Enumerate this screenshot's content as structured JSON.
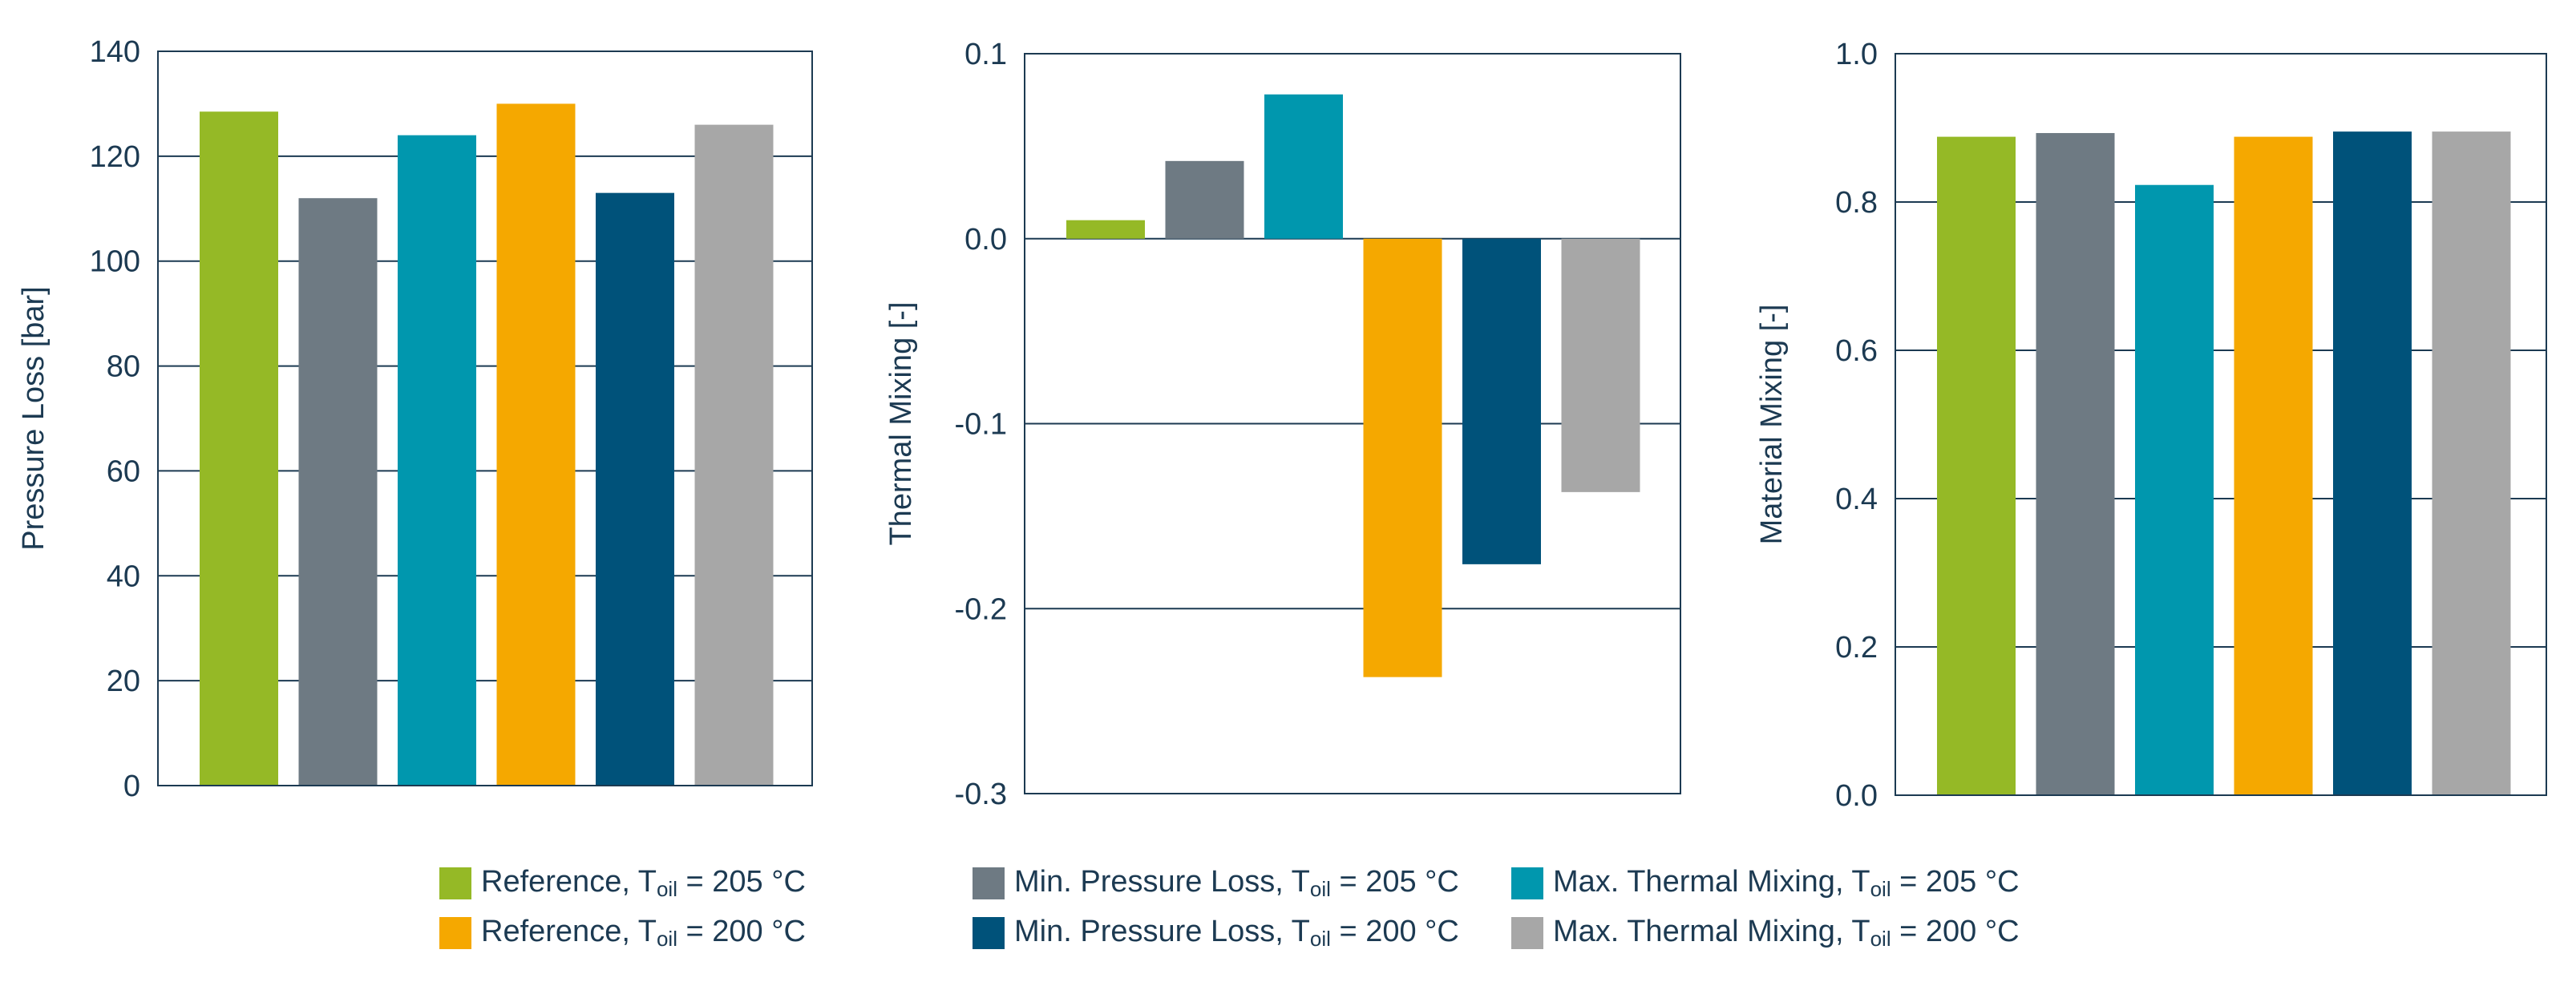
{
  "chart_data": [
    {
      "type": "bar",
      "ylabel": "Pressure Loss  [bar]",
      "ylim": [
        0,
        140
      ],
      "yticks": [
        "0",
        "20",
        "40",
        "60",
        "80",
        "100",
        "120",
        "140"
      ],
      "tick_values": [
        0,
        20,
        40,
        60,
        80,
        100,
        120,
        140
      ],
      "grid": true,
      "values": [
        128.5,
        112,
        124,
        130,
        113,
        126
      ]
    },
    {
      "type": "bar",
      "ylabel": "Thermal Mixing   [-]",
      "ylim": [
        -0.3,
        0.1
      ],
      "yticks": [
        "-0.3",
        "-0.2",
        "-0.1",
        "0.0",
        "0.1"
      ],
      "tick_values": [
        -0.3,
        -0.2,
        -0.1,
        0.0,
        0.1
      ],
      "grid": true,
      "values": [
        0.01,
        0.042,
        0.078,
        -0.237,
        -0.176,
        -0.137
      ]
    },
    {
      "type": "bar",
      "ylabel": "Material Mixing   [-]",
      "ylim": [
        0.0,
        1.0
      ],
      "yticks": [
        "0.0",
        "0.2",
        "0.4",
        "0.6",
        "0.8",
        "1.0"
      ],
      "tick_values": [
        0.0,
        0.2,
        0.4,
        0.6,
        0.8,
        1.0
      ],
      "grid": true,
      "values": [
        0.888,
        0.893,
        0.823,
        0.888,
        0.895,
        0.895
      ]
    }
  ],
  "legend": {
    "placement": "bottom",
    "series": [
      {
        "name": "Reference, T",
        "sub": "oil",
        "suffix": " = 205 °C",
        "color": "#95b926"
      },
      {
        "name": "Min. Pressure Loss, T",
        "sub": "oil",
        "suffix": " = 205 °C",
        "color": "#6e7a83"
      },
      {
        "name": "Max. Thermal Mixing, T",
        "sub": "oil",
        "suffix": " = 205 °C",
        "color": "#0097ae"
      },
      {
        "name": "Reference, T",
        "sub": "oil",
        "suffix": " = 200 °C",
        "color": "#f5a800"
      },
      {
        "name": "Min. Pressure Loss, T",
        "sub": "oil",
        "suffix": " = 200 °C",
        "color": "#00527a"
      },
      {
        "name": "Max. Thermal Mixing, T",
        "sub": "oil",
        "suffix": " = 200 °C",
        "color": "#a7a7a7"
      }
    ]
  }
}
